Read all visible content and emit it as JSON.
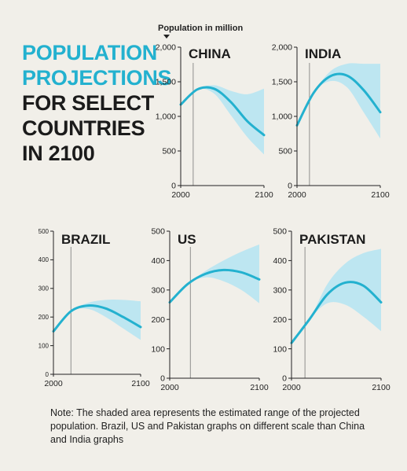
{
  "title_lines": [
    "POPULATION",
    "PROJECTIONS",
    "FOR SELECT",
    "COUNTRIES",
    "IN 2100"
  ],
  "units_label": "Population in million",
  "note": "Note: The shaded area represents the estimated range of the projected population. Brazil, US and Pakistan graphs on different scale than China and India graphs",
  "colors": {
    "line": "#23b1cf",
    "band": "#bde6f1",
    "axis": "#222222",
    "marker": "#666666"
  },
  "chart_data": [
    {
      "type": "line",
      "title": "CHINA",
      "x": [
        2000,
        2020,
        2040,
        2060,
        2080,
        2100
      ],
      "series": [
        {
          "values": [
            1170,
            1390,
            1400,
            1210,
            930,
            730
          ]
        }
      ],
      "range_low": [
        1170,
        1390,
        1330,
        1020,
        700,
        450
      ],
      "range_high": [
        1170,
        1390,
        1450,
        1370,
        1320,
        1400
      ],
      "xlim": [
        2000,
        2100
      ],
      "ylim": [
        0,
        2000
      ],
      "yticks": [
        0,
        500,
        1000,
        1500,
        2000
      ],
      "ytick_labels": [
        "0",
        "500",
        "1,000",
        "1,500",
        "2,000"
      ],
      "xtick_labels": [
        "2000",
        "2100"
      ],
      "marker_x": 2015
    },
    {
      "type": "line",
      "title": "INDIA",
      "x": [
        2000,
        2020,
        2040,
        2060,
        2080,
        2100
      ],
      "series": [
        {
          "values": [
            870,
            1340,
            1580,
            1590,
            1380,
            1060
          ]
        }
      ],
      "range_low": [
        870,
        1340,
        1510,
        1420,
        1060,
        680
      ],
      "range_high": [
        870,
        1340,
        1650,
        1760,
        1760,
        1760
      ],
      "xlim": [
        2000,
        2100
      ],
      "ylim": [
        0,
        2000
      ],
      "yticks": [
        0,
        500,
        1000,
        1500,
        2000
      ],
      "ytick_labels": [
        "0",
        "500",
        "1,000",
        "1,500",
        "2,000"
      ],
      "xtick_labels": [
        "2000",
        "2100"
      ],
      "marker_x": 2015
    },
    {
      "type": "line",
      "title": "BRAZIL",
      "x": [
        2000,
        2020,
        2040,
        2060,
        2080,
        2100
      ],
      "series": [
        {
          "values": [
            150,
            220,
            240,
            230,
            200,
            165
          ]
        }
      ],
      "range_low": [
        150,
        220,
        228,
        200,
        160,
        120
      ],
      "range_high": [
        150,
        220,
        250,
        260,
        260,
        255
      ],
      "xlim": [
        2000,
        2100
      ],
      "ylim": [
        0,
        500
      ],
      "yticks": [
        0,
        100,
        200,
        300,
        400,
        500
      ],
      "ytick_labels": [
        "0",
        "100",
        "200",
        "300",
        "400",
        "500"
      ],
      "xtick_labels": [
        "2000",
        "2100"
      ],
      "marker_x": 2020
    },
    {
      "type": "line",
      "title": "US",
      "x": [
        2000,
        2020,
        2040,
        2060,
        2080,
        2100
      ],
      "series": [
        {
          "values": [
            258,
            320,
            355,
            368,
            360,
            336
          ]
        }
      ],
      "range_low": [
        258,
        320,
        343,
        330,
        300,
        255
      ],
      "range_high": [
        258,
        320,
        365,
        400,
        430,
        455
      ],
      "xlim": [
        2000,
        2100
      ],
      "ylim": [
        0,
        500
      ],
      "yticks": [
        0,
        100,
        200,
        300,
        400,
        500
      ],
      "ytick_labels": [
        "0",
        "100",
        "200",
        "300",
        "400",
        "500"
      ],
      "xtick_labels": [
        "2000",
        "2100"
      ],
      "marker_x": 2023
    },
    {
      "type": "line",
      "title": "PAKISTAN",
      "x": [
        2000,
        2020,
        2040,
        2060,
        2080,
        2100
      ],
      "series": [
        {
          "values": [
            120,
            200,
            285,
            325,
            315,
            258
          ]
        }
      ],
      "range_low": [
        120,
        200,
        255,
        250,
        210,
        160
      ],
      "range_high": [
        120,
        200,
        320,
        390,
        425,
        440
      ],
      "xlim": [
        2000,
        2100
      ],
      "ylim": [
        0,
        500
      ],
      "yticks": [
        0,
        100,
        200,
        300,
        400,
        500
      ],
      "ytick_labels": [
        "0",
        "100",
        "200",
        "300",
        "400",
        "500"
      ],
      "xtick_labels": [
        "2000",
        "2100"
      ],
      "marker_x": 2015
    }
  ]
}
